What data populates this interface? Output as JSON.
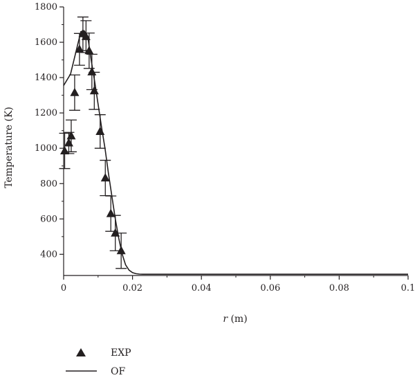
{
  "chart_data": {
    "type": "scatter",
    "xlabel_var": "r",
    "xlabel_unit": "(m)",
    "ylabel": "Temperature (K)",
    "xlim": [
      0,
      0.1
    ],
    "ylim": [
      280,
      1800
    ],
    "x_ticks": [
      0,
      0.02,
      0.04,
      0.06,
      0.08,
      0.1
    ],
    "x_tick_labels": [
      "0",
      "0.02",
      "0.04",
      "0.06",
      "0.08",
      "0.1"
    ],
    "y_ticks": [
      400,
      600,
      800,
      1000,
      1200,
      1400,
      1600,
      1800
    ],
    "y_tick_labels": [
      "400",
      "600",
      "800",
      "1000",
      "1200",
      "1400",
      "1600",
      "1800"
    ],
    "grid": false,
    "legend_position": "bottom-left",
    "series": [
      {
        "name": "EXP",
        "kind": "scatter",
        "marker": "triangle",
        "color": "#231f20",
        "points": [
          {
            "x": 0.0003,
            "y": 985,
            "err": 100
          },
          {
            "x": 0.0015,
            "y": 1030,
            "err": 60
          },
          {
            "x": 0.0022,
            "y": 1070,
            "err": 90
          },
          {
            "x": 0.0032,
            "y": 1315,
            "err": 100
          },
          {
            "x": 0.0046,
            "y": 1560,
            "err": 90
          },
          {
            "x": 0.0056,
            "y": 1648,
            "err": 95
          },
          {
            "x": 0.0065,
            "y": 1632,
            "err": 90
          },
          {
            "x": 0.0074,
            "y": 1552,
            "err": 100
          },
          {
            "x": 0.0082,
            "y": 1432,
            "err": 100
          },
          {
            "x": 0.0089,
            "y": 1325,
            "err": 105
          },
          {
            "x": 0.0106,
            "y": 1095,
            "err": 95
          },
          {
            "x": 0.0121,
            "y": 832,
            "err": 100
          },
          {
            "x": 0.0137,
            "y": 630,
            "err": 100
          },
          {
            "x": 0.015,
            "y": 520,
            "err": 100
          },
          {
            "x": 0.0167,
            "y": 420,
            "err": 100
          }
        ]
      },
      {
        "name": "OF",
        "kind": "line",
        "color": "#231f20",
        "x": [
          0,
          0.002,
          0.004,
          0.005,
          0.006,
          0.007,
          0.008,
          0.009,
          0.01,
          0.011,
          0.012,
          0.013,
          0.014,
          0.015,
          0.016,
          0.017,
          0.018,
          0.019,
          0.02,
          0.021,
          0.022,
          0.023,
          0.024,
          0.03,
          0.05,
          0.08,
          0.1
        ],
        "y": [
          1355,
          1420,
          1580,
          1660,
          1665,
          1630,
          1500,
          1380,
          1250,
          1120,
          1000,
          860,
          730,
          600,
          490,
          400,
          340,
          310,
          296,
          290,
          288,
          287,
          287,
          287,
          287,
          287,
          287
        ]
      }
    ]
  }
}
